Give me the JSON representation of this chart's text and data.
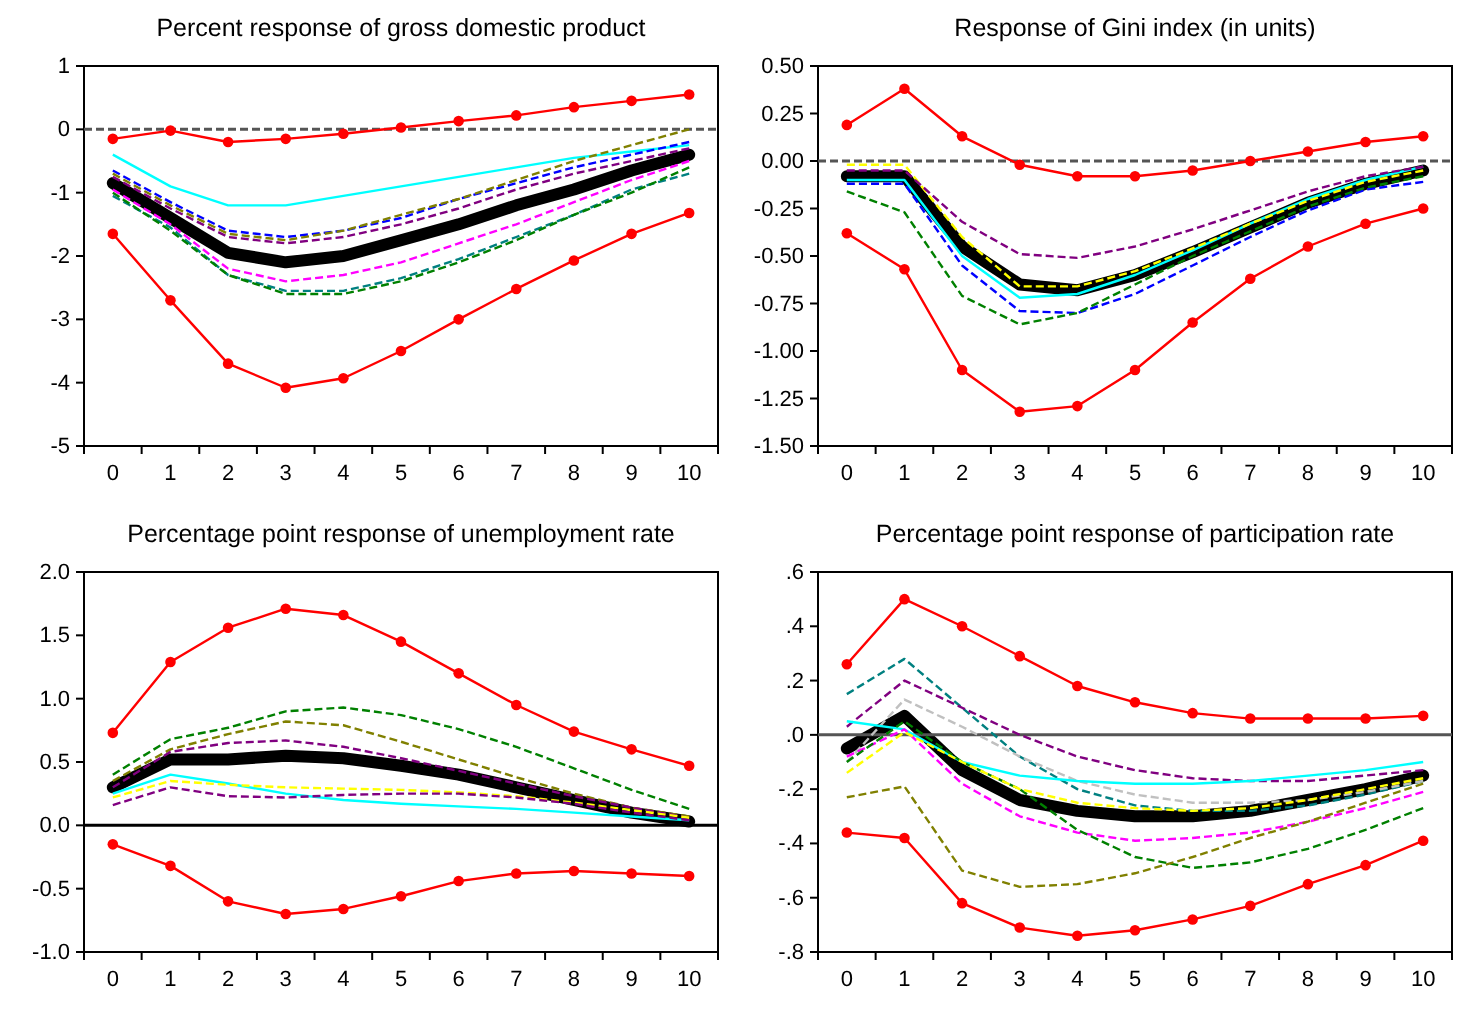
{
  "chart_data": [
    {
      "type": "line",
      "title": "Percent response of gross domestic product",
      "categories": [
        "0",
        "1",
        "2",
        "3",
        "4",
        "5",
        "6",
        "7",
        "8",
        "9",
        "10"
      ],
      "ylim": [
        -5,
        1
      ],
      "yticks": [
        -5,
        -4,
        -3,
        -2,
        -1,
        0,
        1
      ],
      "ref_lines": [
        {
          "axis": "y",
          "value": 0,
          "color": "#555555",
          "line_style": "dashed"
        }
      ],
      "series": [
        {
          "color": "#00ffff",
          "line_style": "solid",
          "marker": "none",
          "values": [
            -0.4,
            -0.9,
            -1.2,
            -1.2,
            -1.05,
            -0.9,
            -0.75,
            -0.6,
            -0.45,
            -0.35,
            -0.25
          ]
        },
        {
          "color": "#008080",
          "line_style": "dashed",
          "marker": "none",
          "values": [
            -1.05,
            -1.55,
            -2.3,
            -2.55,
            -2.55,
            -2.35,
            -2.05,
            -1.7,
            -1.35,
            -0.95,
            -0.7
          ]
        },
        {
          "color": "#ff00ff",
          "line_style": "dashed",
          "marker": "none",
          "values": [
            -0.95,
            -1.5,
            -2.2,
            -2.4,
            -2.3,
            -2.1,
            -1.8,
            -1.5,
            -1.15,
            -0.8,
            -0.5
          ]
        },
        {
          "color": "#0000ff",
          "line_style": "dashed",
          "marker": "none",
          "values": [
            -0.65,
            -1.15,
            -1.6,
            -1.7,
            -1.6,
            -1.4,
            -1.1,
            -0.85,
            -0.6,
            -0.4,
            -0.2
          ]
        },
        {
          "color": "#800080",
          "line_style": "dashed",
          "marker": "none",
          "values": [
            -0.75,
            -1.25,
            -1.7,
            -1.8,
            -1.7,
            -1.5,
            -1.25,
            -0.95,
            -0.7,
            -0.5,
            -0.3
          ]
        },
        {
          "color": "#008000",
          "line_style": "dashed",
          "marker": "none",
          "values": [
            -1.0,
            -1.6,
            -2.3,
            -2.6,
            -2.6,
            -2.4,
            -2.1,
            -1.75,
            -1.35,
            -1.0,
            -0.6
          ]
        },
        {
          "color": "#808000",
          "line_style": "dashed",
          "marker": "none",
          "values": [
            -0.7,
            -1.2,
            -1.65,
            -1.75,
            -1.6,
            -1.35,
            -1.1,
            -0.8,
            -0.5,
            -0.25,
            0.0
          ]
        },
        {
          "color": "#ff0000",
          "line_style": "solid",
          "marker": "circle",
          "values": [
            -0.15,
            -0.02,
            -0.2,
            -0.15,
            -0.07,
            0.03,
            0.13,
            0.22,
            0.35,
            0.45,
            0.55
          ]
        },
        {
          "color": "#ff0000",
          "line_style": "solid",
          "marker": "circle",
          "values": [
            -1.65,
            -2.7,
            -3.7,
            -4.08,
            -3.93,
            -3.5,
            -3.0,
            -2.52,
            -2.07,
            -1.65,
            -1.32
          ]
        },
        {
          "color": "#000000",
          "line_style": "solid",
          "marker": "none",
          "values": [
            -0.85,
            -1.4,
            -1.95,
            -2.1,
            -2.0,
            -1.75,
            -1.5,
            -1.2,
            -0.95,
            -0.65,
            -0.4
          ]
        }
      ]
    },
    {
      "type": "line",
      "title": "Response of Gini index (in units)",
      "categories": [
        "0",
        "1",
        "2",
        "3",
        "4",
        "5",
        "6",
        "7",
        "8",
        "9",
        "10"
      ],
      "ylim": [
        -1.5,
        0.5
      ],
      "yticks": [
        {
          "value": -1.5,
          "label": "-1.50"
        },
        {
          "value": -1.25,
          "label": "-1.25"
        },
        {
          "value": -1,
          "label": "-1.00"
        },
        {
          "value": -0.75,
          "label": "-0.75"
        },
        {
          "value": -0.5,
          "label": "-0.50"
        },
        {
          "value": -0.25,
          "label": "-0.25"
        },
        {
          "value": 0,
          "label": "0.00"
        },
        {
          "value": 0.25,
          "label": "0.25"
        },
        {
          "value": 0.5,
          "label": "0.50"
        }
      ],
      "ref_lines": [
        {
          "axis": "y",
          "value": 0,
          "color": "#555555",
          "line_style": "dashed"
        }
      ],
      "series": [
        {
          "color": "#0000ff",
          "line_style": "dashed",
          "marker": "none",
          "values": [
            -0.12,
            -0.12,
            -0.55,
            -0.79,
            -0.8,
            -0.7,
            -0.55,
            -0.4,
            -0.26,
            -0.15,
            -0.11
          ]
        },
        {
          "color": "#00ffff",
          "line_style": "solid",
          "marker": "none",
          "values": [
            -0.1,
            -0.1,
            -0.5,
            -0.72,
            -0.7,
            -0.6,
            -0.47,
            -0.33,
            -0.2,
            -0.1,
            -0.03
          ]
        },
        {
          "color": "#ffff00",
          "line_style": "dashed",
          "marker": "none",
          "values": [
            -0.02,
            -0.02,
            -0.4,
            -0.66,
            -0.66,
            -0.58,
            -0.46,
            -0.33,
            -0.21,
            -0.11,
            -0.05
          ]
        },
        {
          "color": "#008000",
          "line_style": "dashed",
          "marker": "none",
          "values": [
            -0.16,
            -0.27,
            -0.71,
            -0.86,
            -0.8,
            -0.65,
            -0.5,
            -0.37,
            -0.24,
            -0.14,
            -0.08
          ]
        },
        {
          "color": "#800080",
          "line_style": "dashed",
          "marker": "none",
          "values": [
            -0.05,
            -0.05,
            -0.32,
            -0.49,
            -0.51,
            -0.45,
            -0.36,
            -0.26,
            -0.16,
            -0.08,
            -0.03
          ]
        },
        {
          "color": "#ff0000",
          "line_style": "solid",
          "marker": "circle",
          "values": [
            0.19,
            0.38,
            0.13,
            -0.02,
            -0.08,
            -0.08,
            -0.05,
            0.0,
            0.05,
            0.1,
            0.13
          ]
        },
        {
          "color": "#ff0000",
          "line_style": "solid",
          "marker": "circle",
          "values": [
            -0.38,
            -0.57,
            -1.1,
            -1.32,
            -1.29,
            -1.1,
            -0.85,
            -0.62,
            -0.45,
            -0.33,
            -0.25
          ]
        },
        {
          "color": "#000000",
          "line_style": "solid",
          "marker": "none",
          "values": [
            -0.08,
            -0.08,
            -0.45,
            -0.65,
            -0.68,
            -0.6,
            -0.48,
            -0.35,
            -0.22,
            -0.12,
            -0.05
          ]
        }
      ]
    },
    {
      "type": "line",
      "title": "Percentage point response of unemployment rate",
      "categories": [
        "0",
        "1",
        "2",
        "3",
        "4",
        "5",
        "6",
        "7",
        "8",
        "9",
        "10"
      ],
      "ylim": [
        -1,
        2
      ],
      "yticks": [
        {
          "value": -1,
          "label": "-1.0"
        },
        {
          "value": -0.5,
          "label": "-0.5"
        },
        {
          "value": 0,
          "label": "0.0"
        },
        {
          "value": 0.5,
          "label": "0.5"
        },
        {
          "value": 1,
          "label": "1.0"
        },
        {
          "value": 1.5,
          "label": "1.5"
        },
        {
          "value": 2,
          "label": "2.0"
        }
      ],
      "ref_lines": [
        {
          "axis": "y",
          "value": 0,
          "color": "#000000",
          "line_style": "solid"
        }
      ],
      "series": [
        {
          "color": "#008000",
          "line_style": "dashed",
          "marker": "none",
          "values": [
            0.4,
            0.68,
            0.77,
            0.9,
            0.93,
            0.87,
            0.76,
            0.62,
            0.45,
            0.28,
            0.13
          ]
        },
        {
          "color": "#808000",
          "line_style": "dashed",
          "marker": "none",
          "values": [
            0.35,
            0.6,
            0.72,
            0.82,
            0.79,
            0.66,
            0.52,
            0.38,
            0.25,
            0.14,
            0.07
          ]
        },
        {
          "color": "#800080",
          "line_style": "dashed",
          "marker": "none",
          "values": [
            0.3,
            0.58,
            0.65,
            0.67,
            0.62,
            0.53,
            0.43,
            0.33,
            0.23,
            0.14,
            0.06
          ]
        },
        {
          "color": "#00ffff",
          "line_style": "solid",
          "marker": "none",
          "values": [
            0.25,
            0.4,
            0.33,
            0.25,
            0.2,
            0.17,
            0.15,
            0.13,
            0.1,
            0.07,
            0.04
          ]
        },
        {
          "color": "#ffff00",
          "line_style": "dashed",
          "marker": "none",
          "values": [
            0.22,
            0.35,
            0.32,
            0.3,
            0.29,
            0.28,
            0.26,
            0.23,
            0.18,
            0.12,
            0.06
          ]
        },
        {
          "color": "#800080",
          "line_style": "dashed",
          "marker": "none",
          "values": [
            0.16,
            0.3,
            0.23,
            0.22,
            0.24,
            0.25,
            0.25,
            0.22,
            0.17,
            0.1,
            0.04
          ]
        },
        {
          "color": "#ff0000",
          "line_style": "solid",
          "marker": "circle",
          "values": [
            0.73,
            1.29,
            1.56,
            1.71,
            1.66,
            1.45,
            1.2,
            0.95,
            0.74,
            0.6,
            0.47
          ]
        },
        {
          "color": "#ff0000",
          "line_style": "solid",
          "marker": "circle",
          "values": [
            -0.15,
            -0.32,
            -0.6,
            -0.7,
            -0.66,
            -0.56,
            -0.44,
            -0.38,
            -0.36,
            -0.38,
            -0.4
          ]
        },
        {
          "color": "#000000",
          "line_style": "solid",
          "marker": "none",
          "values": [
            0.3,
            0.52,
            0.52,
            0.55,
            0.53,
            0.47,
            0.4,
            0.3,
            0.2,
            0.1,
            0.03
          ]
        }
      ]
    },
    {
      "type": "line",
      "title": "Percentage point response of participation rate",
      "categories": [
        "0",
        "1",
        "2",
        "3",
        "4",
        "5",
        "6",
        "7",
        "8",
        "9",
        "10"
      ],
      "ylim": [
        -0.8,
        0.6
      ],
      "yticks": [
        {
          "value": -0.8,
          "label": "-.8"
        },
        {
          "value": -0.6,
          "label": "-.6"
        },
        {
          "value": -0.4,
          "label": "-.4"
        },
        {
          "value": -0.2,
          "label": "-.2"
        },
        {
          "value": 0,
          "label": ".0"
        },
        {
          "value": 0.2,
          "label": ".2"
        },
        {
          "value": 0.4,
          "label": ".4"
        },
        {
          "value": 0.6,
          "label": ".6"
        }
      ],
      "ref_lines": [
        {
          "axis": "y",
          "value": 0,
          "color": "#555555",
          "line_style": "solid"
        }
      ],
      "series": [
        {
          "color": "#008080",
          "line_style": "dashed",
          "marker": "none",
          "values": [
            0.15,
            0.28,
            0.1,
            -0.08,
            -0.2,
            -0.26,
            -0.28,
            -0.28,
            -0.26,
            -0.22,
            -0.17
          ]
        },
        {
          "color": "#800080",
          "line_style": "dashed",
          "marker": "none",
          "values": [
            0.03,
            0.2,
            0.1,
            0.0,
            -0.08,
            -0.13,
            -0.16,
            -0.17,
            -0.17,
            -0.15,
            -0.13
          ]
        },
        {
          "color": "#c0c0c0",
          "line_style": "dashed",
          "marker": "none",
          "values": [
            -0.1,
            0.13,
            0.03,
            -0.08,
            -0.17,
            -0.22,
            -0.25,
            -0.25,
            -0.24,
            -0.21,
            -0.17
          ]
        },
        {
          "color": "#00ffff",
          "line_style": "solid",
          "marker": "none",
          "values": [
            0.05,
            0.02,
            -0.1,
            -0.15,
            -0.17,
            -0.18,
            -0.18,
            -0.17,
            -0.15,
            -0.13,
            -0.1
          ]
        },
        {
          "color": "#ff00ff",
          "line_style": "dashed",
          "marker": "none",
          "values": [
            -0.08,
            0.02,
            -0.18,
            -0.3,
            -0.36,
            -0.39,
            -0.38,
            -0.36,
            -0.32,
            -0.27,
            -0.21
          ]
        },
        {
          "color": "#008000",
          "line_style": "dashed",
          "marker": "none",
          "values": [
            -0.1,
            0.05,
            -0.1,
            -0.2,
            -0.35,
            -0.45,
            -0.49,
            -0.47,
            -0.42,
            -0.35,
            -0.27
          ]
        },
        {
          "color": "#808000",
          "line_style": "dashed",
          "marker": "none",
          "values": [
            -0.23,
            -0.19,
            -0.5,
            -0.56,
            -0.55,
            -0.51,
            -0.45,
            -0.38,
            -0.32,
            -0.25,
            -0.18
          ]
        },
        {
          "color": "#ffff00",
          "line_style": "dashed",
          "marker": "none",
          "values": [
            -0.14,
            0.01,
            -0.1,
            -0.2,
            -0.25,
            -0.27,
            -0.28,
            -0.27,
            -0.24,
            -0.2,
            -0.16
          ]
        },
        {
          "color": "#ff0000",
          "line_style": "solid",
          "marker": "circle",
          "values": [
            0.26,
            0.5,
            0.4,
            0.29,
            0.18,
            0.12,
            0.08,
            0.06,
            0.06,
            0.06,
            0.07
          ]
        },
        {
          "color": "#ff0000",
          "line_style": "solid",
          "marker": "circle",
          "values": [
            -0.36,
            -0.38,
            -0.62,
            -0.71,
            -0.74,
            -0.72,
            -0.68,
            -0.63,
            -0.55,
            -0.48,
            -0.39
          ]
        },
        {
          "color": "#000000",
          "line_style": "solid",
          "marker": "none",
          "values": [
            -0.05,
            0.07,
            -0.13,
            -0.24,
            -0.28,
            -0.3,
            -0.3,
            -0.28,
            -0.24,
            -0.2,
            -0.15
          ]
        }
      ]
    }
  ]
}
